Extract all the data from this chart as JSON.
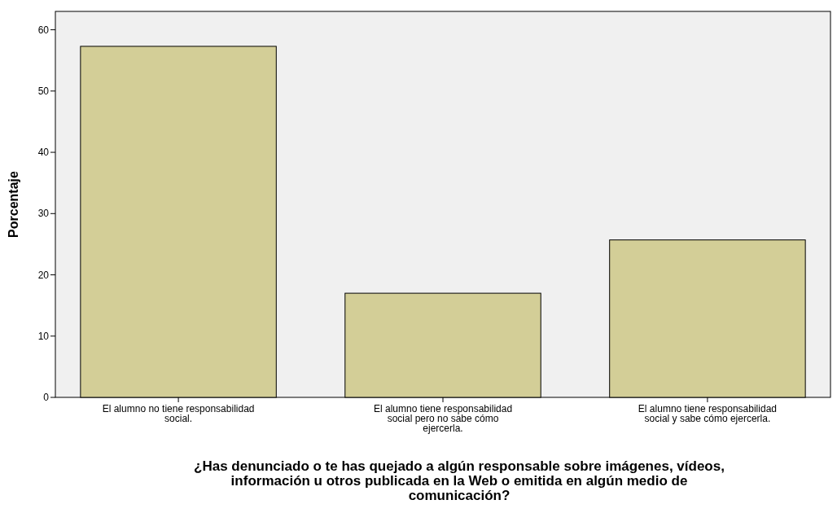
{
  "chart_data": {
    "type": "bar",
    "xlabel": "¿Has denunciado o te has quejado a algún responsable sobre imágenes, vídeos, información u otros publicada en la Web o emitida en algún medio de comunicación?",
    "ylabel": "Porcentaje",
    "categories": [
      "El alumno no tiene responsabilidad social.",
      "El alumno tiene responsabilidad social pero no sabe cómo ejercerla.",
      "El alumno tiene responsabilidad social y sabe cómo ejercerla."
    ],
    "values": [
      57.3,
      17.0,
      25.7
    ],
    "color": "#d3ce97",
    "ylim": [
      0,
      63
    ],
    "yticks": [
      0,
      10,
      20,
      30,
      40,
      50,
      60
    ],
    "grid": false
  }
}
